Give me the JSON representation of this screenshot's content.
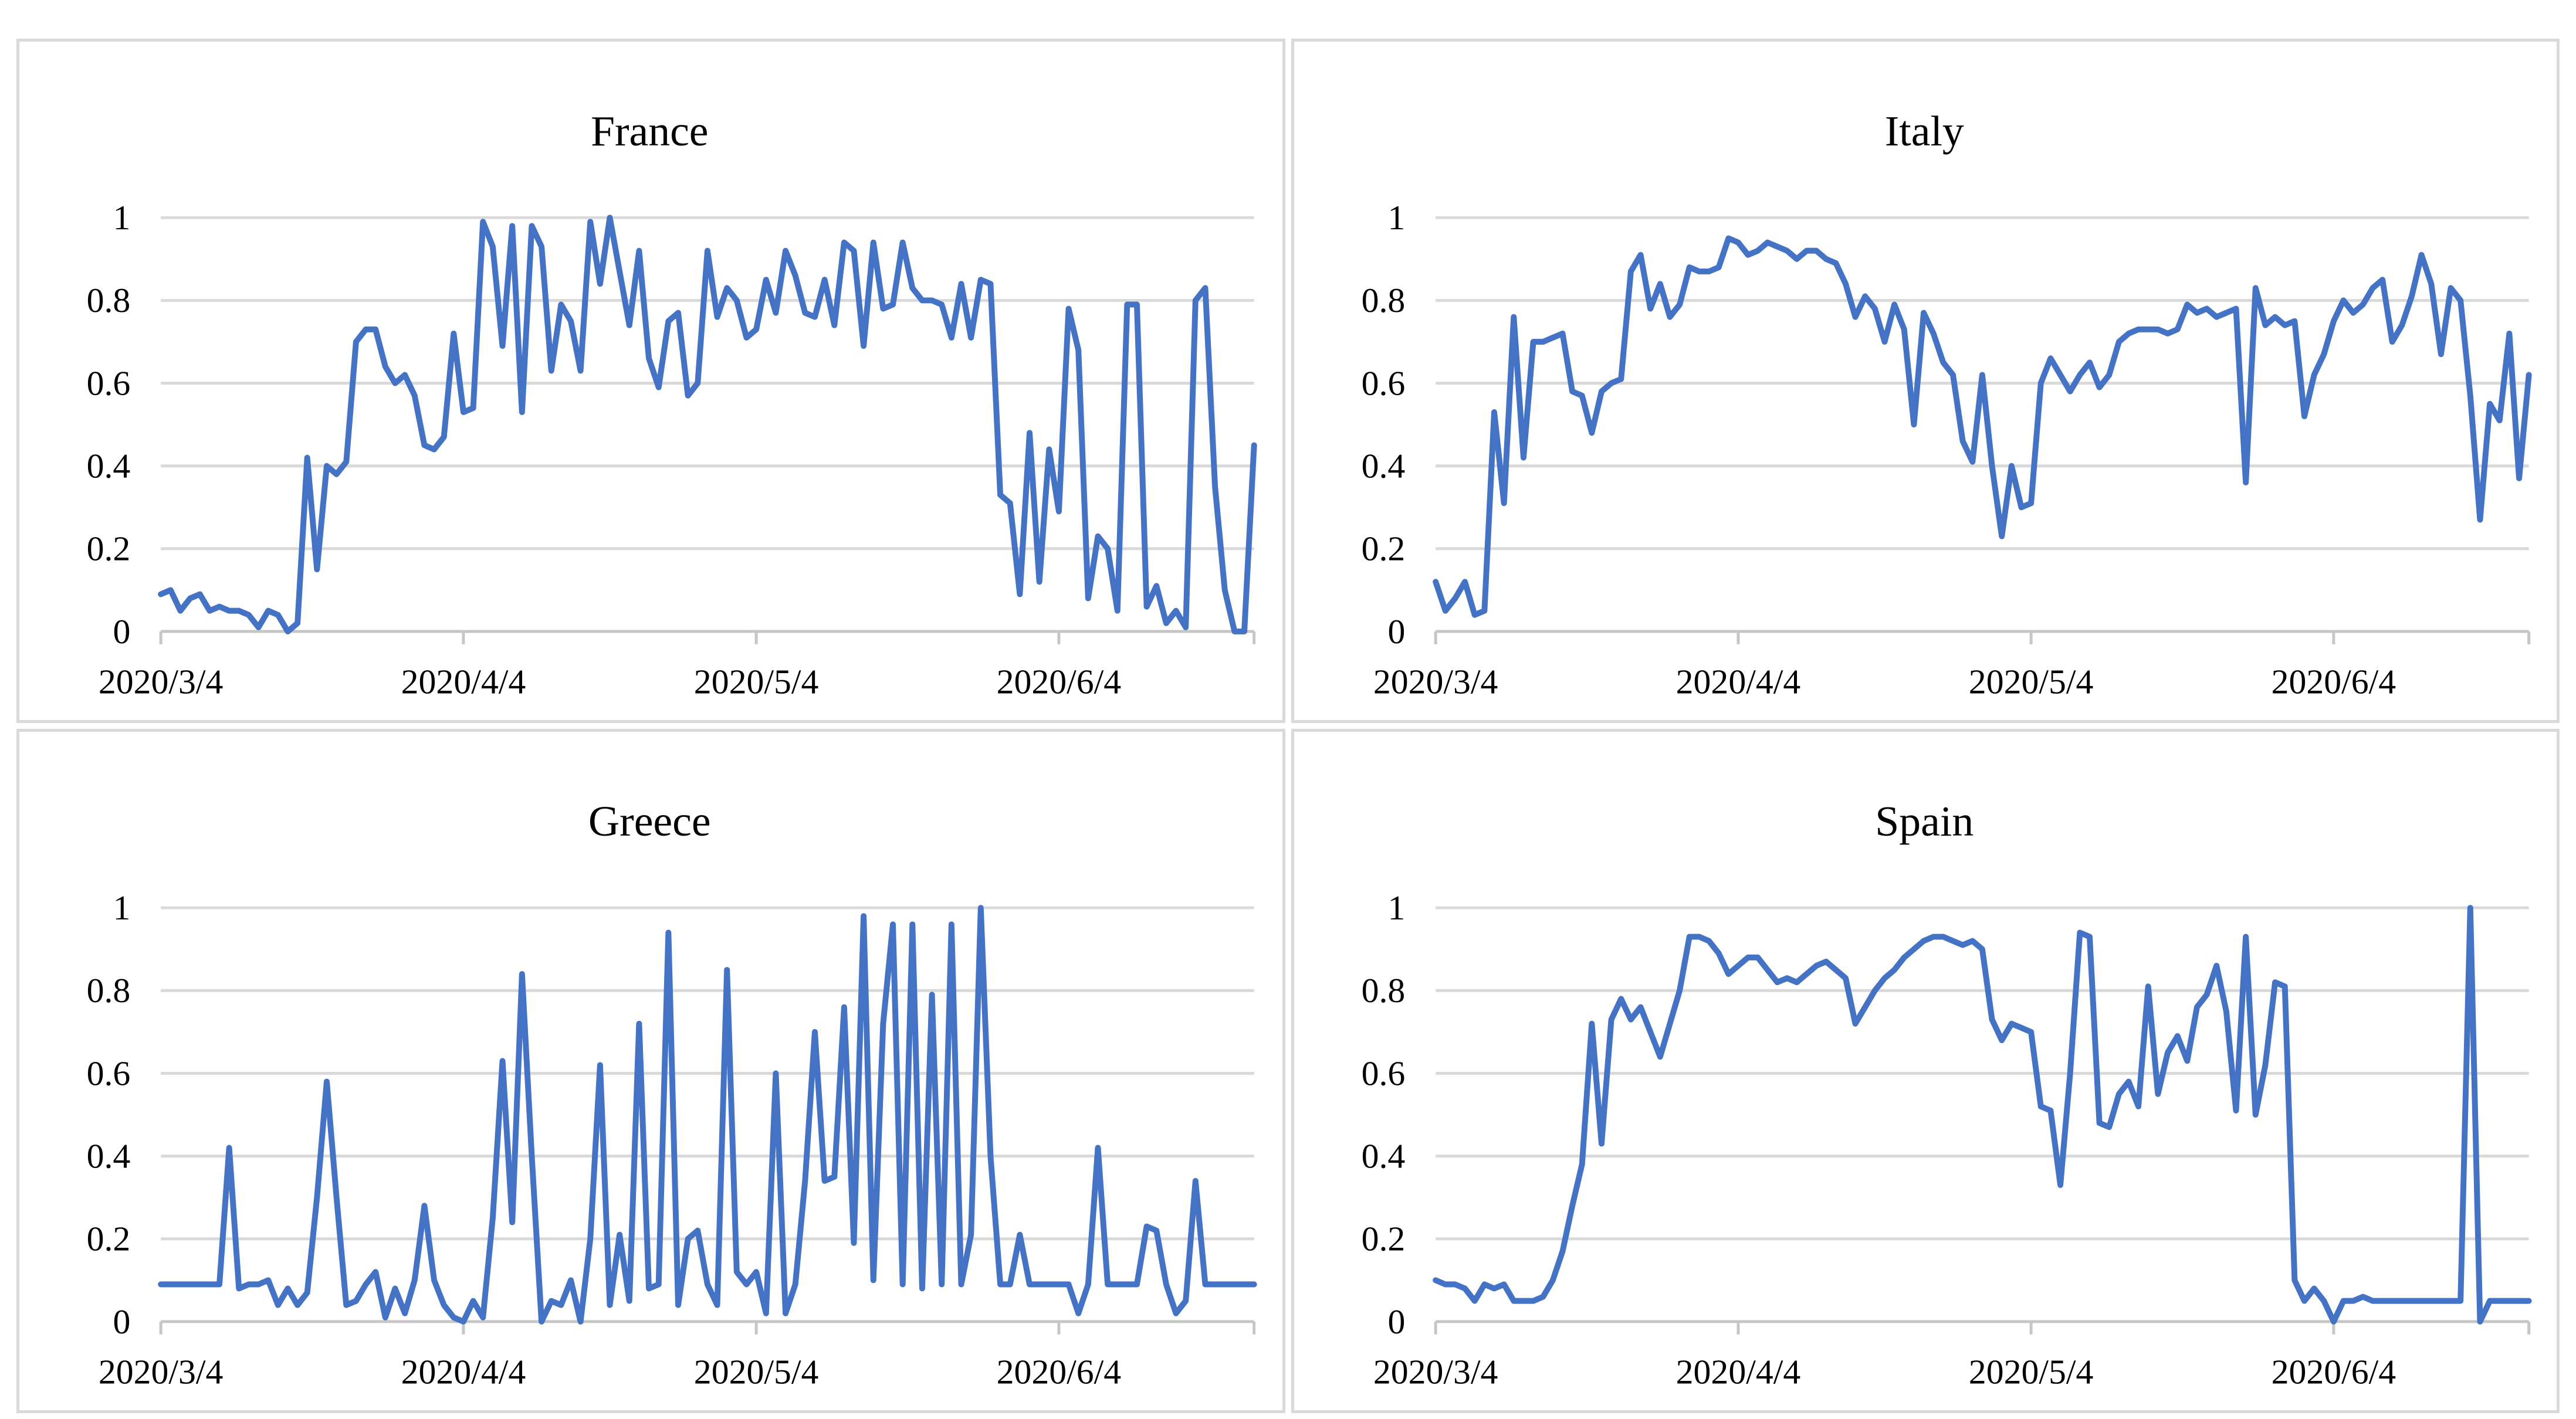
{
  "page": {
    "description": "2x2 grid of daily time-series line charts for four countries",
    "background_color": "#FFFFFF"
  },
  "colors": {
    "series_line": "#4472C4",
    "gridline": "#D9D9D9",
    "axis_line": "#C6C6C6",
    "panel_border": "#D9D9D9",
    "panel_background": "#FFFFFF",
    "label_text": "#000000"
  },
  "chart_data": [
    {
      "type": "line",
      "title": "France",
      "x_frequency": "daily",
      "x_tick_labels": [
        "2020/3/4",
        "2020/4/4",
        "2020/5/4",
        "2020/6/4"
      ],
      "x_tick_day_offsets": [
        0,
        31,
        61,
        92
      ],
      "y_tick_labels": [
        "0",
        "0.2",
        "0.4",
        "0.6",
        "0.8",
        "1"
      ],
      "y_tick_values": [
        0,
        0.2,
        0.4,
        0.6,
        0.8,
        1
      ],
      "ylim": [
        0,
        1
      ],
      "grid": true,
      "legend": "none",
      "series": [
        {
          "name": "France",
          "color": "#4472C4",
          "values": [
            0.09,
            0.1,
            0.05,
            0.08,
            0.09,
            0.05,
            0.06,
            0.05,
            0.05,
            0.04,
            0.01,
            0.05,
            0.04,
            0.0,
            0.02,
            0.42,
            0.15,
            0.4,
            0.38,
            0.41,
            0.7,
            0.73,
            0.73,
            0.64,
            0.6,
            0.62,
            0.57,
            0.45,
            0.44,
            0.47,
            0.72,
            0.53,
            0.54,
            0.99,
            0.93,
            0.69,
            0.98,
            0.53,
            0.98,
            0.93,
            0.63,
            0.79,
            0.75,
            0.63,
            0.99,
            0.84,
            1.0,
            0.87,
            0.74,
            0.92,
            0.66,
            0.59,
            0.75,
            0.77,
            0.57,
            0.6,
            0.92,
            0.76,
            0.83,
            0.8,
            0.71,
            0.73,
            0.85,
            0.77,
            0.92,
            0.86,
            0.77,
            0.76,
            0.85,
            0.74,
            0.94,
            0.92,
            0.69,
            0.94,
            0.78,
            0.79,
            0.94,
            0.83,
            0.8,
            0.8,
            0.79,
            0.71,
            0.84,
            0.71,
            0.85,
            0.84,
            0.33,
            0.31,
            0.09,
            0.48,
            0.12,
            0.44,
            0.29,
            0.78,
            0.68,
            0.08,
            0.23,
            0.2,
            0.05,
            0.79,
            0.79,
            0.06,
            0.11,
            0.02,
            0.05,
            0.01,
            0.8,
            0.83,
            0.35,
            0.1,
            0.0,
            0.0,
            0.45
          ]
        }
      ]
    },
    {
      "type": "line",
      "title": "Italy",
      "x_frequency": "daily",
      "x_tick_labels": [
        "2020/3/4",
        "2020/4/4",
        "2020/5/4",
        "2020/6/4"
      ],
      "x_tick_day_offsets": [
        0,
        31,
        61,
        92
      ],
      "y_tick_labels": [
        "0",
        "0.2",
        "0.4",
        "0.6",
        "0.8",
        "1"
      ],
      "y_tick_values": [
        0,
        0.2,
        0.4,
        0.6,
        0.8,
        1
      ],
      "ylim": [
        0,
        1
      ],
      "grid": true,
      "legend": "none",
      "series": [
        {
          "name": "Italy",
          "color": "#4472C4",
          "values": [
            0.12,
            0.05,
            0.08,
            0.12,
            0.04,
            0.05,
            0.53,
            0.31,
            0.76,
            0.42,
            0.7,
            0.7,
            0.71,
            0.72,
            0.58,
            0.57,
            0.48,
            0.58,
            0.6,
            0.61,
            0.87,
            0.91,
            0.78,
            0.84,
            0.76,
            0.79,
            0.88,
            0.87,
            0.87,
            0.88,
            0.95,
            0.94,
            0.91,
            0.92,
            0.94,
            0.93,
            0.92,
            0.9,
            0.92,
            0.92,
            0.9,
            0.89,
            0.84,
            0.76,
            0.81,
            0.78,
            0.7,
            0.79,
            0.73,
            0.5,
            0.77,
            0.72,
            0.65,
            0.62,
            0.46,
            0.41,
            0.62,
            0.4,
            0.23,
            0.4,
            0.3,
            0.31,
            0.6,
            0.66,
            0.62,
            0.58,
            0.62,
            0.65,
            0.59,
            0.62,
            0.7,
            0.72,
            0.73,
            0.73,
            0.73,
            0.72,
            0.73,
            0.79,
            0.77,
            0.78,
            0.76,
            0.77,
            0.78,
            0.36,
            0.83,
            0.74,
            0.76,
            0.74,
            0.75,
            0.52,
            0.62,
            0.67,
            0.75,
            0.8,
            0.77,
            0.79,
            0.83,
            0.85,
            0.7,
            0.74,
            0.81,
            0.91,
            0.84,
            0.67,
            0.83,
            0.8,
            0.57,
            0.27,
            0.55,
            0.51,
            0.72,
            0.37,
            0.62
          ]
        }
      ]
    },
    {
      "type": "line",
      "title": "Greece",
      "x_frequency": "daily",
      "x_tick_labels": [
        "2020/3/4",
        "2020/4/4",
        "2020/5/4",
        "2020/6/4"
      ],
      "x_tick_day_offsets": [
        0,
        31,
        61,
        92
      ],
      "y_tick_labels": [
        "0",
        "0.2",
        "0.4",
        "0.6",
        "0.8",
        "1"
      ],
      "y_tick_values": [
        0,
        0.2,
        0.4,
        0.6,
        0.8,
        1
      ],
      "ylim": [
        0,
        1
      ],
      "grid": true,
      "legend": "none",
      "series": [
        {
          "name": "Greece",
          "color": "#4472C4",
          "values": [
            0.09,
            0.09,
            0.09,
            0.09,
            0.09,
            0.09,
            0.09,
            0.42,
            0.08,
            0.09,
            0.09,
            0.1,
            0.04,
            0.08,
            0.04,
            0.07,
            0.3,
            0.58,
            0.3,
            0.04,
            0.05,
            0.09,
            0.12,
            0.01,
            0.08,
            0.02,
            0.1,
            0.28,
            0.1,
            0.04,
            0.01,
            0.0,
            0.05,
            0.01,
            0.25,
            0.63,
            0.24,
            0.84,
            0.4,
            0.0,
            0.05,
            0.04,
            0.1,
            0.0,
            0.2,
            0.62,
            0.04,
            0.21,
            0.05,
            0.72,
            0.08,
            0.09,
            0.94,
            0.04,
            0.2,
            0.22,
            0.09,
            0.04,
            0.85,
            0.12,
            0.09,
            0.12,
            0.02,
            0.6,
            0.02,
            0.09,
            0.34,
            0.7,
            0.34,
            0.35,
            0.76,
            0.19,
            0.98,
            0.1,
            0.72,
            0.96,
            0.09,
            0.96,
            0.08,
            0.79,
            0.09,
            0.96,
            0.09,
            0.21,
            1.0,
            0.4,
            0.09,
            0.09,
            0.21,
            0.09,
            0.09,
            0.09,
            0.09,
            0.09,
            0.02,
            0.09,
            0.42,
            0.09,
            0.09,
            0.09,
            0.09,
            0.23,
            0.22,
            0.09,
            0.02,
            0.05,
            0.34,
            0.09,
            0.09,
            0.09,
            0.09,
            0.09,
            0.09
          ]
        }
      ]
    },
    {
      "type": "line",
      "title": "Spain",
      "x_frequency": "daily",
      "x_tick_labels": [
        "2020/3/4",
        "2020/4/4",
        "2020/5/4",
        "2020/6/4"
      ],
      "x_tick_day_offsets": [
        0,
        31,
        61,
        92
      ],
      "y_tick_labels": [
        "0",
        "0.2",
        "0.4",
        "0.6",
        "0.8",
        "1"
      ],
      "y_tick_values": [
        0,
        0.2,
        0.4,
        0.6,
        0.8,
        1
      ],
      "ylim": [
        0,
        1
      ],
      "grid": true,
      "legend": "none",
      "series": [
        {
          "name": "Spain",
          "color": "#4472C4",
          "values": [
            0.1,
            0.09,
            0.09,
            0.08,
            0.05,
            0.09,
            0.08,
            0.09,
            0.05,
            0.05,
            0.05,
            0.06,
            0.1,
            0.17,
            0.28,
            0.38,
            0.72,
            0.43,
            0.73,
            0.78,
            0.73,
            0.76,
            0.7,
            0.64,
            0.72,
            0.8,
            0.93,
            0.93,
            0.92,
            0.89,
            0.84,
            0.86,
            0.88,
            0.88,
            0.85,
            0.82,
            0.83,
            0.82,
            0.84,
            0.86,
            0.87,
            0.85,
            0.83,
            0.72,
            0.76,
            0.8,
            0.83,
            0.85,
            0.88,
            0.9,
            0.92,
            0.93,
            0.93,
            0.92,
            0.91,
            0.92,
            0.9,
            0.73,
            0.68,
            0.72,
            0.71,
            0.7,
            0.52,
            0.51,
            0.33,
            0.6,
            0.94,
            0.93,
            0.48,
            0.47,
            0.55,
            0.58,
            0.52,
            0.81,
            0.55,
            0.65,
            0.69,
            0.63,
            0.76,
            0.79,
            0.86,
            0.75,
            0.51,
            0.93,
            0.5,
            0.62,
            0.82,
            0.81,
            0.1,
            0.05,
            0.08,
            0.05,
            0.0,
            0.05,
            0.05,
            0.06,
            0.05,
            0.05,
            0.05,
            0.05,
            0.05,
            0.05,
            0.05,
            0.05,
            0.05,
            0.05,
            1.0,
            0.0,
            0.05,
            0.05,
            0.05,
            0.05,
            0.05
          ]
        }
      ]
    }
  ]
}
